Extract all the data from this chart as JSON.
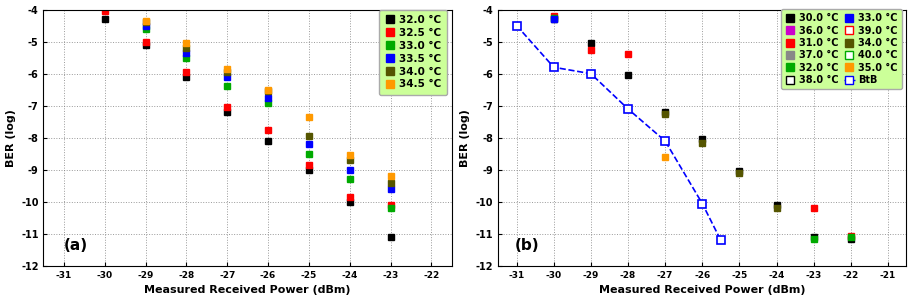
{
  "plot_a": {
    "title": "(a)",
    "xlim": [
      -31.5,
      -21.5
    ],
    "xticks": [
      -31.0,
      -30.0,
      -29.0,
      -28.0,
      -27.0,
      -26.0,
      -25.0,
      -24.0,
      -23.0,
      -22.0
    ],
    "ylim": [
      -12,
      -4
    ],
    "yticks": [
      -12,
      -11,
      -10,
      -9,
      -8,
      -7,
      -6,
      -5,
      -4
    ],
    "ytick_labels": [
      "-12",
      "-11",
      "-10",
      "-9",
      "-8",
      "-7",
      "-6",
      "-5",
      "-4"
    ],
    "series": [
      {
        "label": "32.0 °C",
        "color": "#000000",
        "marker": "s",
        "data": [
          [
            -30.0,
            -4.3
          ],
          [
            -29.0,
            -5.1
          ],
          [
            -28.0,
            -6.1
          ],
          [
            -27.0,
            -7.2
          ],
          [
            -26.0,
            -8.1
          ],
          [
            -25.0,
            -9.0
          ],
          [
            -24.0,
            -10.0
          ],
          [
            -23.0,
            -11.1
          ]
        ]
      },
      {
        "label": "32.5 °C",
        "color": "#ff0000",
        "marker": "s",
        "data": [
          [
            -30.0,
            -4.05
          ],
          [
            -29.0,
            -5.0
          ],
          [
            -28.0,
            -5.95
          ],
          [
            -27.0,
            -7.05
          ],
          [
            -26.0,
            -7.75
          ],
          [
            -25.0,
            -8.85
          ],
          [
            -24.0,
            -9.85
          ],
          [
            -23.0,
            -10.1
          ]
        ]
      },
      {
        "label": "33.0 °C",
        "color": "#00aa00",
        "marker": "s",
        "data": [
          [
            -29.0,
            -4.6
          ],
          [
            -28.0,
            -5.5
          ],
          [
            -27.0,
            -6.4
          ],
          [
            -26.0,
            -6.9
          ],
          [
            -25.0,
            -8.5
          ],
          [
            -24.0,
            -9.3
          ],
          [
            -23.0,
            -10.2
          ]
        ]
      },
      {
        "label": "33.5 °C",
        "color": "#0000ff",
        "marker": "s",
        "data": [
          [
            -29.0,
            -4.5
          ],
          [
            -28.0,
            -5.35
          ],
          [
            -27.0,
            -6.1
          ],
          [
            -26.0,
            -6.75
          ],
          [
            -25.0,
            -8.2
          ],
          [
            -24.0,
            -9.0
          ],
          [
            -23.0,
            -9.6
          ]
        ]
      },
      {
        "label": "34.0 °C",
        "color": "#555500",
        "marker": "s",
        "data": [
          [
            -29.0,
            -4.4
          ],
          [
            -28.0,
            -5.2
          ],
          [
            -27.0,
            -5.95
          ],
          [
            -26.0,
            -6.55
          ],
          [
            -25.0,
            -7.95
          ],
          [
            -24.0,
            -8.7
          ],
          [
            -23.0,
            -9.4
          ]
        ]
      },
      {
        "label": "34.5 °C",
        "color": "#ff9900",
        "marker": "s",
        "data": [
          [
            -29.0,
            -4.35
          ],
          [
            -28.0,
            -5.05
          ],
          [
            -27.0,
            -5.85
          ],
          [
            -26.0,
            -6.5
          ],
          [
            -25.0,
            -7.35
          ],
          [
            -24.0,
            -8.55
          ],
          [
            -23.0,
            -9.2
          ]
        ]
      }
    ],
    "legend_bg": "#ccff99"
  },
  "plot_b": {
    "title": "(b)",
    "xlim": [
      -31.5,
      -20.5
    ],
    "xticks": [
      -31.0,
      -30.0,
      -29.0,
      -28.0,
      -27.0,
      -26.0,
      -25.0,
      -24.0,
      -23.0,
      -22.0,
      -21.0
    ],
    "ylim": [
      -12,
      -4
    ],
    "yticks": [
      -12,
      -11,
      -10,
      -9,
      -8,
      -7,
      -6,
      -5,
      -4
    ],
    "ytick_labels": [
      "-12",
      "-11",
      "-10",
      "-9",
      "-8",
      "-7",
      "-6",
      "-5",
      "-4"
    ],
    "btb_data": [
      [
        -31.0,
        -4.5
      ],
      [
        -30.0,
        -5.8
      ],
      [
        -29.0,
        -6.0
      ],
      [
        -28.0,
        -7.1
      ],
      [
        -27.0,
        -8.1
      ],
      [
        -26.0,
        -10.05
      ],
      [
        -25.5,
        -11.2
      ]
    ],
    "series": [
      {
        "label": "30.0 °C",
        "color": "#000000",
        "marker": "s",
        "mfc": "#000000",
        "data": [
          [
            -30.0,
            -4.3
          ],
          [
            -29.0,
            -5.05
          ],
          [
            -28.0,
            -6.05
          ],
          [
            -27.0,
            -7.2
          ],
          [
            -26.0,
            -8.05
          ],
          [
            -25.0,
            -9.05
          ],
          [
            -24.0,
            -10.1
          ],
          [
            -23.0,
            -11.1
          ],
          [
            -22.0,
            -11.15
          ]
        ]
      },
      {
        "label": "31.0 °C",
        "color": "#ff0000",
        "marker": "s",
        "mfc": "#ff0000",
        "data": [
          [
            -30.0,
            -4.2
          ],
          [
            -29.0,
            -5.25
          ],
          [
            -28.0,
            -5.4
          ],
          [
            -23.0,
            -10.2
          ],
          [
            -22.0,
            -11.05
          ]
        ]
      },
      {
        "label": "32.0 °C",
        "color": "#00aa00",
        "marker": "s",
        "mfc": "#00aa00",
        "data": [
          [
            -30.0,
            -4.25
          ],
          [
            -23.0,
            -11.15
          ],
          [
            -22.0,
            -11.1
          ]
        ]
      },
      {
        "label": "33.0 °C",
        "color": "#0000ff",
        "marker": "s",
        "mfc": "#0000ff",
        "data": [
          [
            -30.0,
            -4.3
          ]
        ]
      },
      {
        "label": "34.0 °C",
        "color": "#555500",
        "marker": "s",
        "mfc": "#555500",
        "data": [
          [
            -27.0,
            -7.25
          ],
          [
            -26.0,
            -8.15
          ],
          [
            -25.0,
            -9.1
          ],
          [
            -24.0,
            -10.2
          ]
        ]
      },
      {
        "label": "35.0 °C",
        "color": "#ff9900",
        "marker": "s",
        "mfc": "#ff9900",
        "data": [
          [
            -27.0,
            -8.6
          ]
        ]
      },
      {
        "label": "36.0 °C",
        "color": "#cc00cc",
        "marker": "s",
        "mfc": "#cc00cc",
        "data": []
      },
      {
        "label": "37.0 °C",
        "color": "#888888",
        "marker": "s",
        "mfc": "#888888",
        "data": []
      },
      {
        "label": "38.0 °C",
        "color": "#000000",
        "marker": "s",
        "mfc": "white",
        "data": []
      },
      {
        "label": "39.0 °C",
        "color": "#ff0000",
        "marker": "s",
        "mfc": "white",
        "data": []
      },
      {
        "label": "40.0 °C",
        "color": "#00aa00",
        "marker": "s",
        "mfc": "white",
        "data": []
      }
    ],
    "legend_bg": "#ccff99"
  },
  "xlabel": "Measured Received Power (dBm)",
  "ylabel": "BER (log)",
  "background_color": "#ffffff"
}
